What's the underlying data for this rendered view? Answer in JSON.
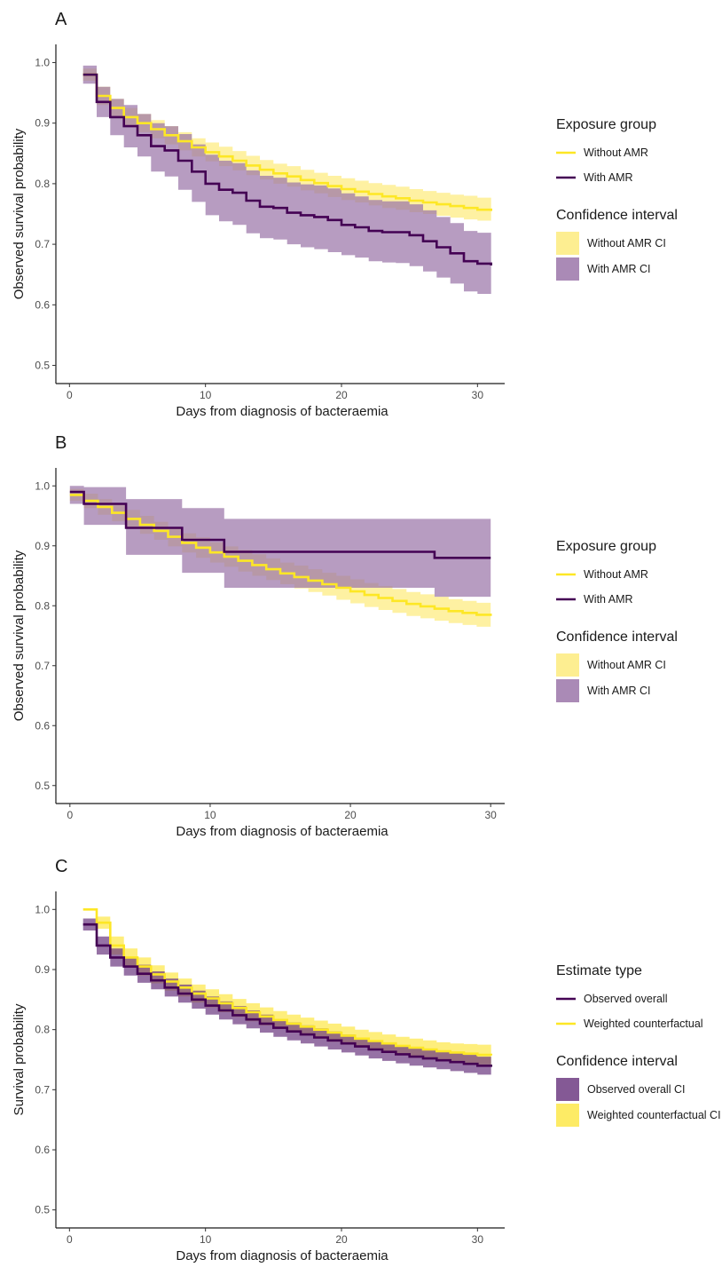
{
  "colors": {
    "with_amr": "#440154",
    "with_amr_ci": "#9b76a9",
    "without_amr": "#fde725",
    "without_amr_ci": "#fdeb7e",
    "observed_overall": "#440154",
    "observed_overall_ci": "#6e3c82",
    "weighted_cf": "#fde725",
    "weighted_cf_ci": "#fde84a"
  },
  "chart_data": [
    {
      "type": "line",
      "panel": "A",
      "xlabel": "Days from diagnosis of bacteraemia",
      "ylabel": "Observed survival probability",
      "xlim": [
        -1,
        32
      ],
      "ylim": [
        0.47,
        1.03
      ],
      "xticks": [
        0,
        10,
        20,
        30
      ],
      "xtick_labels": [
        "0",
        "10",
        "20",
        "30"
      ],
      "yticks": [
        0.5,
        0.6,
        0.7,
        0.8,
        0.9,
        1.0
      ],
      "ytick_labels": [
        "0.5",
        "0.6",
        "0.7",
        "0.8",
        "0.9",
        "1.0"
      ],
      "grid": false,
      "step": true,
      "legend": [
        {
          "title": "Exposure group",
          "kind": "line",
          "items": [
            {
              "label": "Without AMR",
              "color_key": "without_amr"
            },
            {
              "label": "With AMR",
              "color_key": "with_amr"
            }
          ]
        },
        {
          "title": "Confidence interval",
          "kind": "box",
          "items": [
            {
              "label": "Without AMR CI",
              "color_key": "without_amr_ci"
            },
            {
              "label": "With AMR CI",
              "color_key": "with_amr_ci"
            }
          ]
        }
      ],
      "series": [
        {
          "name": "Without AMR",
          "color_key": "without_amr",
          "ci_color_key": "without_amr_ci",
          "x": [
            1,
            2,
            3,
            4,
            5,
            6,
            7,
            8,
            9,
            10,
            11,
            12,
            13,
            14,
            15,
            16,
            17,
            18,
            19,
            20,
            21,
            22,
            23,
            24,
            25,
            26,
            27,
            28,
            29,
            30,
            31
          ],
          "y": [
            0.98,
            0.945,
            0.925,
            0.91,
            0.9,
            0.89,
            0.88,
            0.87,
            0.86,
            0.852,
            0.845,
            0.838,
            0.83,
            0.823,
            0.817,
            0.812,
            0.806,
            0.801,
            0.796,
            0.791,
            0.787,
            0.783,
            0.779,
            0.776,
            0.772,
            0.769,
            0.766,
            0.763,
            0.76,
            0.757,
            0.755
          ],
          "lower": [
            0.97,
            0.93,
            0.91,
            0.895,
            0.885,
            0.875,
            0.865,
            0.855,
            0.845,
            0.837,
            0.829,
            0.822,
            0.814,
            0.807,
            0.8,
            0.795,
            0.789,
            0.784,
            0.778,
            0.773,
            0.769,
            0.764,
            0.76,
            0.757,
            0.753,
            0.75,
            0.747,
            0.744,
            0.741,
            0.739,
            0.736
          ],
          "upper": [
            0.99,
            0.96,
            0.94,
            0.925,
            0.915,
            0.905,
            0.895,
            0.885,
            0.875,
            0.868,
            0.861,
            0.854,
            0.846,
            0.839,
            0.833,
            0.829,
            0.823,
            0.818,
            0.813,
            0.809,
            0.805,
            0.801,
            0.798,
            0.795,
            0.791,
            0.788,
            0.785,
            0.782,
            0.78,
            0.777,
            0.774
          ]
        },
        {
          "name": "With AMR",
          "color_key": "with_amr",
          "ci_color_key": "with_amr_ci",
          "x": [
            1,
            2,
            3,
            4,
            5,
            6,
            7,
            8,
            9,
            10,
            11,
            12,
            13,
            14,
            15,
            16,
            17,
            18,
            19,
            20,
            21,
            22,
            23,
            24,
            25,
            26,
            27,
            28,
            29,
            30,
            31
          ],
          "y": [
            0.98,
            0.935,
            0.91,
            0.895,
            0.88,
            0.862,
            0.855,
            0.838,
            0.82,
            0.8,
            0.79,
            0.785,
            0.772,
            0.762,
            0.76,
            0.752,
            0.748,
            0.745,
            0.74,
            0.732,
            0.728,
            0.722,
            0.72,
            0.72,
            0.715,
            0.705,
            0.695,
            0.685,
            0.672,
            0.668,
            0.665
          ],
          "lower": [
            0.965,
            0.91,
            0.88,
            0.86,
            0.845,
            0.82,
            0.812,
            0.79,
            0.77,
            0.748,
            0.738,
            0.732,
            0.718,
            0.71,
            0.708,
            0.7,
            0.695,
            0.692,
            0.687,
            0.682,
            0.678,
            0.672,
            0.67,
            0.669,
            0.664,
            0.655,
            0.645,
            0.635,
            0.622,
            0.618,
            0.615
          ],
          "upper": [
            0.995,
            0.96,
            0.94,
            0.93,
            0.915,
            0.9,
            0.895,
            0.882,
            0.865,
            0.848,
            0.838,
            0.834,
            0.822,
            0.813,
            0.81,
            0.802,
            0.799,
            0.797,
            0.792,
            0.784,
            0.779,
            0.773,
            0.771,
            0.771,
            0.766,
            0.756,
            0.745,
            0.735,
            0.722,
            0.719,
            0.716
          ]
        }
      ]
    },
    {
      "type": "line",
      "panel": "B",
      "xlabel": "Days from diagnosis of bacteraemia",
      "ylabel": "Observed survival probability",
      "xlim": [
        -1,
        31
      ],
      "ylim": [
        0.47,
        1.03
      ],
      "xticks": [
        0,
        10,
        20,
        30
      ],
      "xtick_labels": [
        "0",
        "10",
        "20",
        "30"
      ],
      "yticks": [
        0.5,
        0.6,
        0.7,
        0.8,
        0.9,
        1.0
      ],
      "ytick_labels": [
        "0.5",
        "0.6",
        "0.7",
        "0.8",
        "0.9",
        "1.0"
      ],
      "grid": false,
      "step": true,
      "legend": [
        {
          "title": "Exposure group",
          "kind": "line",
          "items": [
            {
              "label": "Without AMR",
              "color_key": "without_amr"
            },
            {
              "label": "With AMR",
              "color_key": "with_amr"
            }
          ]
        },
        {
          "title": "Confidence interval",
          "kind": "box",
          "items": [
            {
              "label": "Without AMR CI",
              "color_key": "without_amr_ci"
            },
            {
              "label": "With AMR CI",
              "color_key": "with_amr_ci"
            }
          ]
        }
      ],
      "series": [
        {
          "name": "Without AMR",
          "color_key": "without_amr",
          "ci_color_key": "without_amr_ci",
          "x": [
            0,
            1,
            2,
            3,
            4,
            5,
            6,
            7,
            8,
            9,
            10,
            11,
            12,
            13,
            14,
            15,
            16,
            17,
            18,
            19,
            20,
            21,
            22,
            23,
            24,
            25,
            26,
            27,
            28,
            29,
            30
          ],
          "y": [
            0.985,
            0.975,
            0.965,
            0.955,
            0.945,
            0.935,
            0.925,
            0.915,
            0.905,
            0.897,
            0.889,
            0.882,
            0.875,
            0.868,
            0.861,
            0.854,
            0.848,
            0.842,
            0.836,
            0.83,
            0.824,
            0.818,
            0.813,
            0.808,
            0.803,
            0.799,
            0.795,
            0.791,
            0.788,
            0.785,
            0.783
          ],
          "lower": [
            0.975,
            0.963,
            0.952,
            0.941,
            0.93,
            0.92,
            0.91,
            0.899,
            0.889,
            0.88,
            0.872,
            0.865,
            0.857,
            0.85,
            0.843,
            0.836,
            0.829,
            0.823,
            0.817,
            0.81,
            0.804,
            0.798,
            0.793,
            0.788,
            0.783,
            0.779,
            0.775,
            0.771,
            0.768,
            0.765,
            0.763
          ],
          "upper": [
            0.995,
            0.987,
            0.978,
            0.969,
            0.96,
            0.95,
            0.94,
            0.931,
            0.921,
            0.914,
            0.906,
            0.899,
            0.893,
            0.886,
            0.879,
            0.872,
            0.867,
            0.861,
            0.855,
            0.85,
            0.844,
            0.838,
            0.833,
            0.828,
            0.823,
            0.819,
            0.815,
            0.811,
            0.808,
            0.805,
            0.803
          ]
        },
        {
          "name": "With AMR",
          "color_key": "with_amr",
          "ci_color_key": "with_amr_ci",
          "x": [
            0,
            1,
            4,
            8,
            11,
            26,
            30
          ],
          "y": [
            0.99,
            0.97,
            0.93,
            0.91,
            0.89,
            0.88,
            0.88
          ],
          "lower": [
            0.97,
            0.935,
            0.885,
            0.855,
            0.83,
            0.815,
            0.815
          ],
          "upper": [
            1.0,
            0.998,
            0.978,
            0.963,
            0.945,
            0.945,
            0.945
          ]
        }
      ]
    },
    {
      "type": "line",
      "panel": "C",
      "xlabel": "Days from diagnosis of bacteraemia",
      "ylabel": "Survival probability",
      "xlim": [
        -1,
        32
      ],
      "ylim": [
        0.47,
        1.03
      ],
      "xticks": [
        0,
        10,
        20,
        30
      ],
      "xtick_labels": [
        "0",
        "10",
        "20",
        "30"
      ],
      "yticks": [
        0.5,
        0.6,
        0.7,
        0.8,
        0.9,
        1.0
      ],
      "ytick_labels": [
        "0.5",
        "0.6",
        "0.7",
        "0.8",
        "0.9",
        "1.0"
      ],
      "grid": false,
      "step": true,
      "legend": [
        {
          "title": "Estimate type",
          "kind": "line",
          "items": [
            {
              "label": "Observed overall",
              "color_key": "observed_overall"
            },
            {
              "label": "Weighted counterfactual",
              "color_key": "weighted_cf"
            }
          ]
        },
        {
          "title": "Confidence interval",
          "kind": "box",
          "items": [
            {
              "label": "Observed overall CI",
              "color_key": "observed_overall_ci"
            },
            {
              "label": "Weighted counterfactual CI",
              "color_key": "weighted_cf_ci"
            }
          ]
        }
      ],
      "series": [
        {
          "name": "Weighted counterfactual",
          "color_key": "weighted_cf",
          "ci_color_key": "weighted_cf_ci",
          "x": [
            1,
            2,
            3,
            4,
            5,
            6,
            7,
            8,
            9,
            10,
            11,
            12,
            13,
            14,
            15,
            16,
            17,
            18,
            19,
            20,
            21,
            22,
            23,
            24,
            25,
            26,
            27,
            28,
            29,
            30,
            31
          ],
          "y": [
            1.0,
            0.978,
            0.94,
            0.92,
            0.905,
            0.892,
            0.88,
            0.87,
            0.86,
            0.852,
            0.844,
            0.836,
            0.829,
            0.822,
            0.816,
            0.81,
            0.805,
            0.8,
            0.795,
            0.79,
            0.785,
            0.781,
            0.777,
            0.773,
            0.77,
            0.767,
            0.764,
            0.762,
            0.76,
            0.758,
            0.757
          ],
          "lower": [
            1.0,
            0.968,
            0.925,
            0.905,
            0.89,
            0.877,
            0.865,
            0.855,
            0.845,
            0.837,
            0.829,
            0.821,
            0.814,
            0.807,
            0.801,
            0.795,
            0.79,
            0.785,
            0.78,
            0.775,
            0.77,
            0.766,
            0.762,
            0.758,
            0.755,
            0.752,
            0.749,
            0.746,
            0.744,
            0.742,
            0.74
          ],
          "upper": [
            1.0,
            0.988,
            0.955,
            0.935,
            0.92,
            0.907,
            0.895,
            0.885,
            0.875,
            0.867,
            0.859,
            0.851,
            0.844,
            0.837,
            0.831,
            0.825,
            0.82,
            0.815,
            0.81,
            0.805,
            0.8,
            0.796,
            0.792,
            0.788,
            0.785,
            0.782,
            0.779,
            0.777,
            0.776,
            0.775,
            0.775
          ]
        },
        {
          "name": "Observed overall",
          "color_key": "observed_overall",
          "ci_color_key": "observed_overall_ci",
          "x": [
            1,
            2,
            3,
            4,
            5,
            6,
            7,
            8,
            9,
            10,
            11,
            12,
            13,
            14,
            15,
            16,
            17,
            18,
            19,
            20,
            21,
            22,
            23,
            24,
            25,
            26,
            27,
            28,
            29,
            30,
            31
          ],
          "y": [
            0.975,
            0.94,
            0.92,
            0.905,
            0.893,
            0.882,
            0.87,
            0.86,
            0.85,
            0.84,
            0.832,
            0.824,
            0.817,
            0.81,
            0.803,
            0.797,
            0.792,
            0.787,
            0.782,
            0.777,
            0.772,
            0.767,
            0.763,
            0.759,
            0.755,
            0.752,
            0.749,
            0.746,
            0.743,
            0.74,
            0.738
          ],
          "lower": [
            0.965,
            0.925,
            0.905,
            0.89,
            0.878,
            0.867,
            0.855,
            0.845,
            0.835,
            0.825,
            0.817,
            0.809,
            0.802,
            0.795,
            0.788,
            0.782,
            0.777,
            0.772,
            0.767,
            0.762,
            0.757,
            0.752,
            0.748,
            0.744,
            0.74,
            0.737,
            0.734,
            0.731,
            0.728,
            0.725,
            0.722
          ],
          "upper": [
            0.985,
            0.955,
            0.935,
            0.92,
            0.908,
            0.897,
            0.885,
            0.875,
            0.865,
            0.855,
            0.847,
            0.839,
            0.832,
            0.825,
            0.818,
            0.812,
            0.807,
            0.802,
            0.797,
            0.792,
            0.787,
            0.782,
            0.778,
            0.774,
            0.77,
            0.767,
            0.764,
            0.761,
            0.758,
            0.755,
            0.753
          ]
        }
      ]
    }
  ]
}
